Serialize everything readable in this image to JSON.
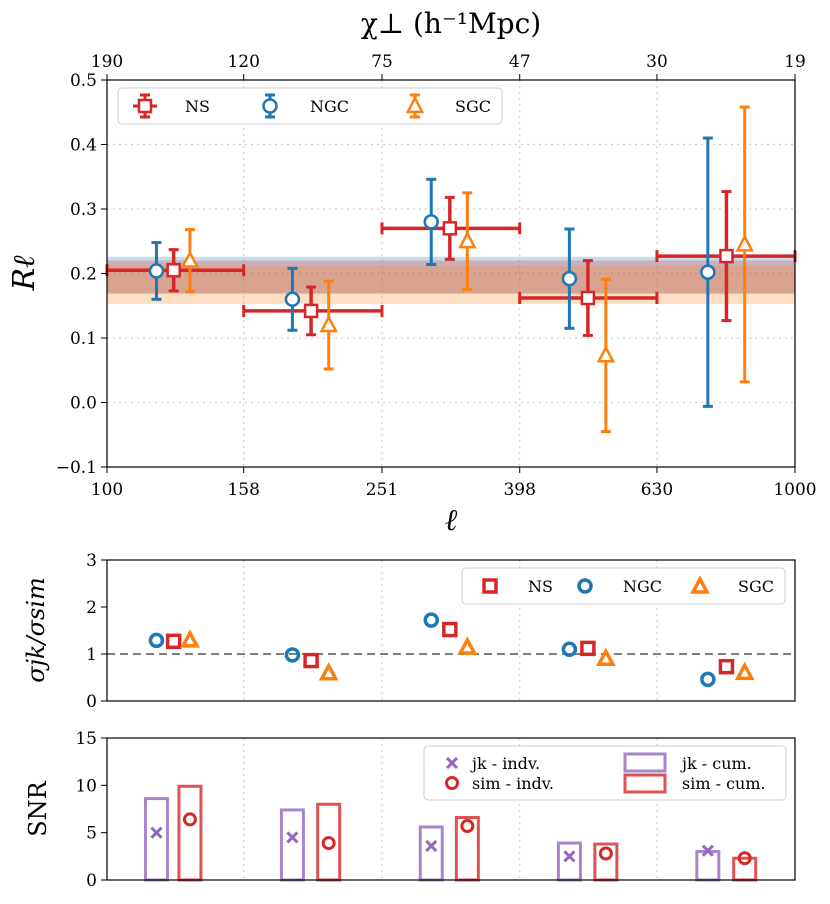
{
  "colors": {
    "ns": "#d62728",
    "ngc": "#1f77b4",
    "sgc": "#ff7f0e",
    "jk": "#9467bd",
    "sim": "#d62728"
  },
  "chart_data": [
    {
      "type": "errorbar",
      "panel": "R_ell",
      "xscale": "log",
      "xlim": [
        100,
        1000
      ],
      "ylim": [
        -0.1,
        0.5
      ],
      "xlabel": "ℓ",
      "ylabel": "Rℓ",
      "xticks": [
        100,
        158,
        251,
        398,
        630,
        1000
      ],
      "yticks": [
        -0.1,
        0.0,
        0.1,
        0.2,
        0.3,
        0.4,
        0.5
      ],
      "ytick_labels": [
        "−0.1",
        "0.0",
        "0.1",
        "0.2",
        "0.3",
        "0.4",
        "0.5"
      ],
      "top_axis": {
        "label": "χ⊥ (h⁻¹Mpc)",
        "ticks": [
          {
            "ell": 100,
            "label": "190"
          },
          {
            "ell": 158,
            "label": "120"
          },
          {
            "ell": 251,
            "label": "75"
          },
          {
            "ell": 398,
            "label": "47"
          },
          {
            "ell": 630,
            "label": "30"
          },
          {
            "ell": 1000,
            "label": "19"
          }
        ]
      },
      "bins": [
        [
          100,
          158
        ],
        [
          158,
          251
        ],
        [
          251,
          398
        ],
        [
          398,
          630
        ],
        [
          630,
          1000
        ]
      ],
      "series": [
        {
          "name": "NS",
          "marker": "square",
          "color_key": "ns",
          "x": [
            125,
            198,
            315,
            500,
            795
          ],
          "y": [
            0.205,
            0.142,
            0.27,
            0.162,
            0.227
          ],
          "yerr": [
            0.032,
            0.037,
            0.048,
            0.058,
            0.1
          ],
          "xerr_bins": true
        },
        {
          "name": "NGC",
          "marker": "circle",
          "color_key": "ngc",
          "x": [
            118,
            186,
            296,
            470,
            747
          ],
          "y": [
            0.204,
            0.16,
            0.28,
            0.192,
            0.202
          ],
          "yerr": [
            0.044,
            0.048,
            0.066,
            0.077,
            0.208
          ]
        },
        {
          "name": "SGC",
          "marker": "triangle",
          "color_key": "sgc",
          "x": [
            132,
            210,
            334,
            531,
            845
          ],
          "y": [
            0.22,
            0.12,
            0.25,
            0.073,
            0.245
          ],
          "yerr": [
            0.048,
            0.068,
            0.075,
            0.118,
            0.213
          ]
        }
      ],
      "bands": [
        {
          "name": "NGC",
          "color_key": "ngc",
          "low": 0.168,
          "high": 0.226
        },
        {
          "name": "NS",
          "color_key": "ns",
          "low": 0.17,
          "high": 0.22
        },
        {
          "name": "SGC",
          "color_key": "sgc",
          "low": 0.153,
          "high": 0.212
        }
      ],
      "legend": [
        "NS",
        "NGC",
        "SGC"
      ],
      "legend_location": "top-left"
    },
    {
      "type": "scatter",
      "panel": "sigma_ratio",
      "ylabel": "σjk/σsim",
      "ylim": [
        0,
        3
      ],
      "yticks": [
        0,
        1,
        2,
        3
      ],
      "reference_line": 1,
      "series": [
        {
          "name": "NS",
          "marker": "square",
          "color_key": "ns",
          "x": [
            125,
            198,
            315,
            500,
            795
          ],
          "y": [
            1.27,
            0.86,
            1.52,
            1.12,
            0.73
          ]
        },
        {
          "name": "NGC",
          "marker": "circle",
          "color_key": "ngc",
          "x": [
            118,
            186,
            296,
            470,
            747
          ],
          "y": [
            1.29,
            0.98,
            1.72,
            1.1,
            0.46
          ]
        },
        {
          "name": "SGC",
          "marker": "triangle",
          "color_key": "sgc",
          "x": [
            132,
            210,
            334,
            531,
            845
          ],
          "y": [
            1.3,
            0.6,
            1.15,
            0.91,
            0.61
          ]
        }
      ],
      "legend": [
        "NS",
        "NGC",
        "SGC"
      ],
      "legend_location": "top-right"
    },
    {
      "type": "bar+scatter",
      "panel": "snr",
      "ylabel": "SNR",
      "ylim": [
        0,
        15
      ],
      "yticks": [
        0,
        5,
        10,
        15
      ],
      "bars": [
        {
          "name": "jk - cum.",
          "color_key": "jk",
          "x": [
            118,
            186,
            296,
            470,
            747
          ],
          "values": [
            8.6,
            7.4,
            5.6,
            3.9,
            3.0
          ]
        },
        {
          "name": "sim - cum.",
          "color_key": "sim",
          "x": [
            132,
            210,
            334,
            531,
            845
          ],
          "values": [
            9.9,
            8.0,
            6.6,
            3.8,
            2.3
          ]
        }
      ],
      "points": [
        {
          "name": "jk - indv.",
          "marker": "x",
          "color_key": "jk",
          "x": [
            118,
            186,
            296,
            470,
            747
          ],
          "values": [
            5.0,
            4.5,
            3.6,
            2.5,
            3.1
          ]
        },
        {
          "name": "sim - indv.",
          "marker": "circle",
          "color_key": "sim",
          "x": [
            132,
            210,
            334,
            531,
            845
          ],
          "values": [
            6.4,
            3.9,
            5.7,
            2.8,
            2.3
          ]
        }
      ],
      "legend": [
        "jk - indv.",
        "sim - indv.",
        "jk - cum.",
        "sim - cum."
      ],
      "legend_location": "top-right"
    }
  ]
}
